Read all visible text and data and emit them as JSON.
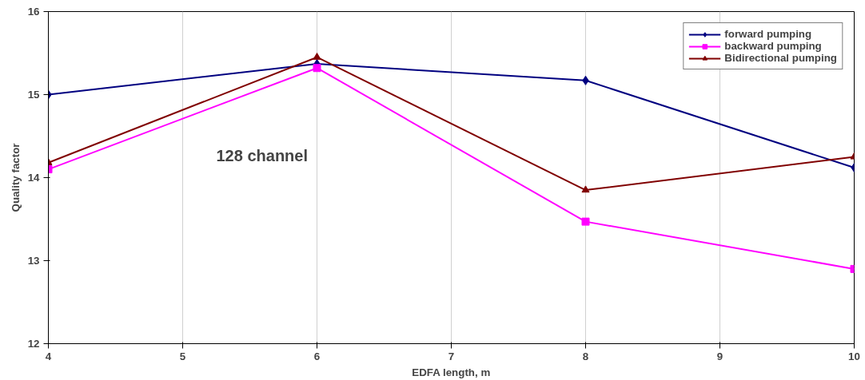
{
  "chart_data": {
    "type": "line",
    "xlabel": "EDFA length, m",
    "ylabel": "Quality factor",
    "x": [
      4,
      6,
      8,
      10
    ],
    "series": [
      {
        "name": "forward pumping",
        "color": "#000080",
        "values": [
          15.0,
          15.37,
          15.17,
          14.12
        ],
        "marker": "diamond"
      },
      {
        "name": "backward pumping",
        "color": "#ff00ff",
        "values": [
          14.1,
          15.32,
          13.47,
          12.9
        ],
        "marker": "square"
      },
      {
        "name": "Bidirectional pumping",
        "color": "#800000",
        "values": [
          14.18,
          15.45,
          13.85,
          14.25
        ],
        "marker": "triangle"
      }
    ],
    "xlim": [
      4,
      10
    ],
    "xticks": [
      4,
      5,
      6,
      7,
      8,
      9,
      10
    ],
    "ylim": [
      12,
      16
    ],
    "yticks": [
      12,
      13,
      14,
      15,
      16
    ],
    "grid": "x",
    "legend": "top right",
    "annotations": [
      "128 channel"
    ],
    "line_style": "solid"
  }
}
